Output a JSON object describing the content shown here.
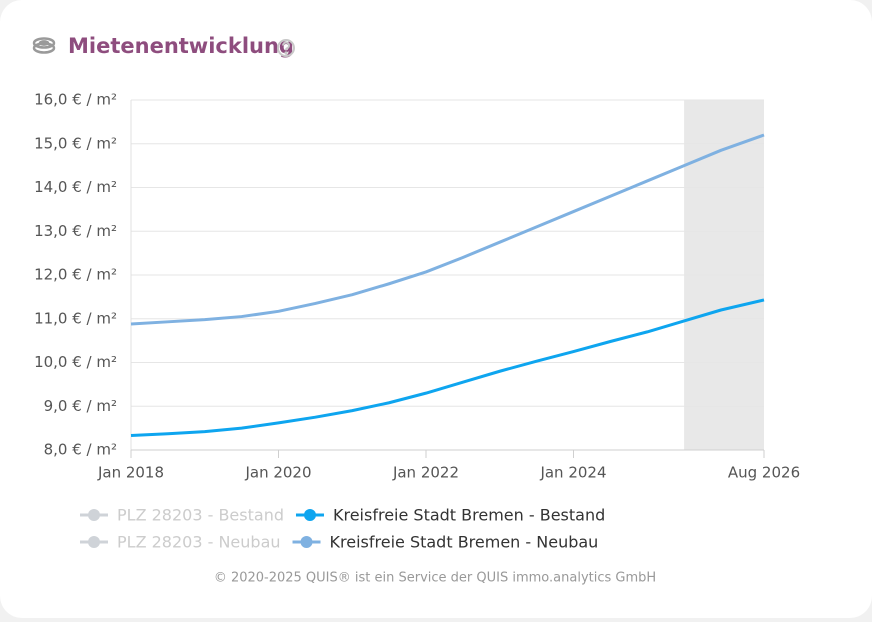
{
  "chart_data": {
    "type": "line",
    "title": "Mietenentwicklung",
    "footer": "© 2020-2025 QUIS® ist ein Service der QUIS immo.analytics GmbH",
    "x": [
      "2018-01",
      "2018-07",
      "2019-01",
      "2019-07",
      "2020-01",
      "2020-07",
      "2021-01",
      "2021-07",
      "2022-01",
      "2022-07",
      "2023-01",
      "2023-07",
      "2024-01",
      "2024-07",
      "2025-01",
      "2025-07",
      "2026-01",
      "2026-08"
    ],
    "xlim": [
      "2018-01",
      "2026-08"
    ],
    "xticks": [
      {
        "value": "2018-01",
        "label": "Jan 2018"
      },
      {
        "value": "2020-01",
        "label": "Jan 2020"
      },
      {
        "value": "2022-01",
        "label": "Jan 2022"
      },
      {
        "value": "2024-01",
        "label": "Jan 2024"
      },
      {
        "value": "2026-08",
        "label": "Aug 2026"
      }
    ],
    "forecast_start": "2025-07",
    "ylim": [
      8,
      16
    ],
    "yticks": [
      {
        "value": 8,
        "label": "8,0 € / m²"
      },
      {
        "value": 9,
        "label": "9,0 € / m²"
      },
      {
        "value": 10,
        "label": "10,0 € / m²"
      },
      {
        "value": 11,
        "label": "11,0 € / m²"
      },
      {
        "value": 12,
        "label": "12,0 € / m²"
      },
      {
        "value": 13,
        "label": "13,0 € / m²"
      },
      {
        "value": 14,
        "label": "14,0 € / m²"
      },
      {
        "value": 15,
        "label": "15,0 € / m²"
      },
      {
        "value": 16,
        "label": "16,0 € / m²"
      }
    ],
    "grid": true,
    "series": [
      {
        "name": "PLZ 28203 - Bestand",
        "color": "#cfd3d8",
        "hidden": true,
        "values": [
          null,
          null,
          null,
          null,
          null,
          null,
          null,
          null,
          null,
          null,
          null,
          null,
          null,
          null,
          null,
          null,
          null,
          null
        ]
      },
      {
        "name": "Kreisfreie Stadt Bremen - Bestand",
        "color": "#0ea5ef",
        "hidden": false,
        "values": [
          8.33,
          8.37,
          8.42,
          8.5,
          8.62,
          8.75,
          8.9,
          9.08,
          9.3,
          9.55,
          9.8,
          10.03,
          10.25,
          10.48,
          10.7,
          10.95,
          11.2,
          11.43
        ]
      },
      {
        "name": "PLZ 28203 - Neubau",
        "color": "#cfd3d8",
        "hidden": true,
        "values": [
          null,
          null,
          null,
          null,
          null,
          null,
          null,
          null,
          null,
          null,
          null,
          null,
          null,
          null,
          null,
          null,
          null,
          null
        ]
      },
      {
        "name": "Kreisfreie Stadt Bremen - Neubau",
        "color": "#7fb1e1",
        "hidden": false,
        "values": [
          10.88,
          10.93,
          10.98,
          11.05,
          11.17,
          11.35,
          11.55,
          11.8,
          12.07,
          12.4,
          12.75,
          13.1,
          13.45,
          13.8,
          14.15,
          14.5,
          14.85,
          15.2
        ]
      }
    ]
  }
}
